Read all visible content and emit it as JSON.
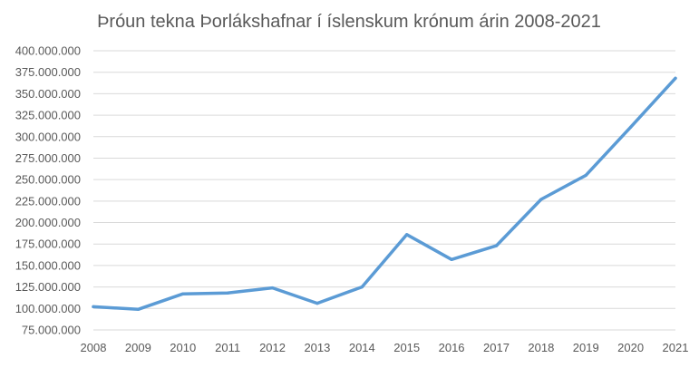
{
  "chart_data": {
    "type": "line",
    "title": "Þróun tekna Þorlákshafnar í íslenskum krónum árin 2008-2021",
    "xlabel": "",
    "ylabel": "",
    "categories": [
      "2008",
      "2009",
      "2010",
      "2011",
      "2012",
      "2013",
      "2014",
      "2015",
      "2016",
      "2017",
      "2018",
      "2019",
      "2020",
      "2021"
    ],
    "series": [
      {
        "values": [
          102000000,
          99000000,
          117000000,
          118000000,
          124000000,
          106000000,
          125000000,
          186000000,
          157000000,
          173000000,
          227000000,
          255000000,
          311000000,
          368000000
        ],
        "color": "#5B9BD5"
      }
    ],
    "ylim": [
      75000000,
      400000000
    ],
    "yticks": [
      75000000,
      100000000,
      125000000,
      150000000,
      175000000,
      200000000,
      225000000,
      250000000,
      275000000,
      300000000,
      325000000,
      350000000,
      375000000,
      400000000
    ],
    "ytick_labels": [
      "75.000.000",
      "100.000.000",
      "125.000.000",
      "150.000.000",
      "175.000.000",
      "200.000.000",
      "225.000.000",
      "250.000.000",
      "275.000.000",
      "300.000.000",
      "325.000.000",
      "350.000.000",
      "375.000.000",
      "400.000.000"
    ],
    "grid": true,
    "grid_color": "#D9D9D9",
    "legend": "none"
  }
}
